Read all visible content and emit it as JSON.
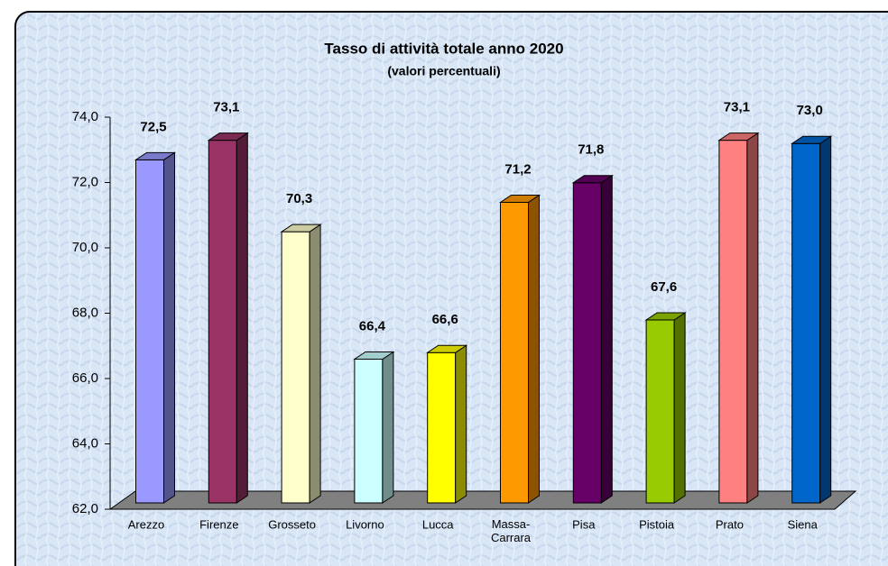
{
  "chart_data": {
    "type": "bar3d",
    "title": "Tasso di attività totale anno 2020",
    "subtitle": "(valori percentuali)",
    "categories": [
      "Arezzo",
      "Firenze",
      "Grosseto",
      "Livorno",
      "Lucca",
      "Massa-\nCarrara",
      "Pisa",
      "Pistoia",
      "Prato",
      "Siena"
    ],
    "values": [
      72.5,
      73.1,
      70.3,
      66.4,
      66.6,
      71.2,
      71.8,
      67.6,
      73.1,
      73.0
    ],
    "value_labels": [
      "72,5",
      "73,1",
      "70,3",
      "66,4",
      "66,6",
      "71,2",
      "71,8",
      "67,6",
      "73,1",
      "73,0"
    ],
    "colors": [
      "#9999ff",
      "#993366",
      "#ffffcc",
      "#ccffff",
      "#ffff00",
      "#ff9900",
      "#660066",
      "#99cc00",
      "#ff8080",
      "#0066cc"
    ],
    "ylim": [
      62,
      74
    ],
    "yticks": [
      {
        "value": 62,
        "label": "62,0"
      },
      {
        "value": 64,
        "label": "64,0"
      },
      {
        "value": 66,
        "label": "66,0"
      },
      {
        "value": 68,
        "label": "68,0"
      },
      {
        "value": 70,
        "label": "70,0"
      },
      {
        "value": 72,
        "label": "72,0"
      },
      {
        "value": 74,
        "label": "74,0"
      }
    ],
    "grid": false
  }
}
